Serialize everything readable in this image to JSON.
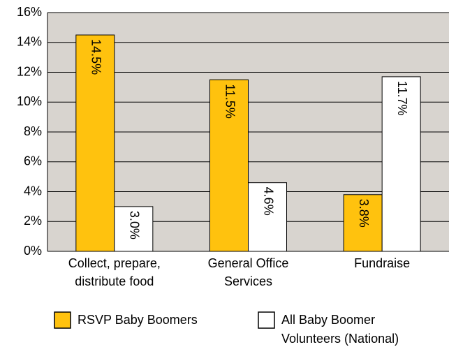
{
  "chart_data": {
    "type": "bar",
    "categories": [
      [
        "Collect, prepare,",
        "distribute food"
      ],
      [
        "General Office",
        "Services"
      ],
      [
        "Fundraise"
      ]
    ],
    "series": [
      {
        "name": [
          "RSVP Baby Boomers"
        ],
        "color": "#ffc20e",
        "values": [
          14.5,
          11.5,
          3.8
        ],
        "value_labels": [
          "14.5%",
          "11.5%",
          "3.8%"
        ]
      },
      {
        "name": [
          "All Baby Boomer",
          "Volunteers (National)"
        ],
        "color": "#ffffff",
        "values": [
          3.0,
          4.6,
          11.7
        ],
        "value_labels": [
          "3.0%",
          "4.6%",
          "11.7%"
        ]
      }
    ],
    "ylim": [
      0,
      16
    ],
    "yticks": [
      {
        "value": 0,
        "label": "0%"
      },
      {
        "value": 2,
        "label": "2%"
      },
      {
        "value": 4,
        "label": "4%"
      },
      {
        "value": 6,
        "label": "6%"
      },
      {
        "value": 8,
        "label": "8%"
      },
      {
        "value": 10,
        "label": "10%"
      },
      {
        "value": 12,
        "label": "12%"
      },
      {
        "value": 14,
        "label": "14%"
      },
      {
        "value": 16,
        "label": "16%"
      }
    ],
    "grid": true,
    "legend": "bottom"
  }
}
